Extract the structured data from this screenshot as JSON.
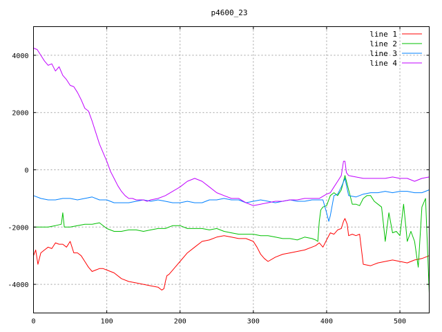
{
  "chart_data": {
    "type": "line",
    "title": "p4600_23",
    "xlabel": "",
    "ylabel": "",
    "xlim": [
      0,
      540
    ],
    "ylim": [
      -5000,
      5000
    ],
    "x_ticks": [
      0,
      100,
      200,
      300,
      400,
      500
    ],
    "y_ticks": [
      -4000,
      -2000,
      0,
      2000,
      4000
    ],
    "grid": true,
    "legend_position": "top-right",
    "series": [
      {
        "name": "line 1",
        "color": "#ff0000",
        "x": [
          0,
          3,
          6,
          10,
          15,
          20,
          25,
          30,
          35,
          40,
          45,
          50,
          55,
          60,
          65,
          70,
          75,
          80,
          85,
          90,
          95,
          100,
          110,
          120,
          130,
          140,
          150,
          160,
          170,
          175,
          178,
          180,
          182,
          185,
          190,
          200,
          210,
          220,
          230,
          240,
          250,
          260,
          270,
          280,
          290,
          300,
          305,
          310,
          315,
          320,
          330,
          340,
          350,
          360,
          370,
          380,
          385,
          390,
          395,
          400,
          405,
          410,
          415,
          420,
          423,
          425,
          428,
          430,
          435,
          440,
          445,
          450,
          460,
          470,
          480,
          490,
          500,
          510,
          520,
          530,
          540
        ],
        "values": [
          -3000,
          -2800,
          -3300,
          -2900,
          -2800,
          -2700,
          -2750,
          -2550,
          -2600,
          -2600,
          -2700,
          -2500,
          -2900,
          -2900,
          -3000,
          -3200,
          -3400,
          -3550,
          -3500,
          -3450,
          -3450,
          -3500,
          -3600,
          -3800,
          -3900,
          -3950,
          -4000,
          -4050,
          -4100,
          -4200,
          -4150,
          -3900,
          -3700,
          -3650,
          -3500,
          -3200,
          -2900,
          -2700,
          -2500,
          -2450,
          -2350,
          -2300,
          -2350,
          -2400,
          -2400,
          -2500,
          -2700,
          -2950,
          -3100,
          -3200,
          -3050,
          -2950,
          -2900,
          -2850,
          -2800,
          -2700,
          -2650,
          -2550,
          -2700,
          -2450,
          -2200,
          -2250,
          -2100,
          -2050,
          -1800,
          -1700,
          -1900,
          -2300,
          -2250,
          -2300,
          -2250,
          -3300,
          -3350,
          -3250,
          -3200,
          -3150,
          -3200,
          -3250,
          -3150,
          -3100,
          -3000
        ]
      },
      {
        "name": "line 2",
        "color": "#00c000",
        "x": [
          0,
          10,
          20,
          30,
          38,
          40,
          42,
          45,
          50,
          60,
          70,
          80,
          90,
          100,
          110,
          120,
          130,
          140,
          150,
          160,
          170,
          180,
          190,
          200,
          210,
          220,
          230,
          240,
          250,
          260,
          270,
          280,
          290,
          300,
          310,
          320,
          330,
          340,
          350,
          360,
          370,
          380,
          385,
          388,
          390,
          392,
          395,
          400,
          405,
          410,
          415,
          420,
          425,
          430,
          435,
          440,
          445,
          450,
          455,
          460,
          465,
          470,
          475,
          478,
          480,
          485,
          490,
          495,
          500,
          505,
          510,
          515,
          520,
          525,
          530,
          535,
          540
        ],
        "values": [
          -2000,
          -2000,
          -2000,
          -1950,
          -1900,
          -1500,
          -2000,
          -2000,
          -2000,
          -1950,
          -1900,
          -1900,
          -1850,
          -2050,
          -2150,
          -2150,
          -2100,
          -2100,
          -2150,
          -2100,
          -2050,
          -2050,
          -1950,
          -1950,
          -2050,
          -2050,
          -2050,
          -2100,
          -2050,
          -2150,
          -2200,
          -2250,
          -2250,
          -2250,
          -2300,
          -2300,
          -2350,
          -2400,
          -2400,
          -2450,
          -2350,
          -2400,
          -2450,
          -2500,
          -1800,
          -1400,
          -1300,
          -1250,
          -900,
          -800,
          -900,
          -700,
          -200,
          -700,
          -1200,
          -1200,
          -1250,
          -1000,
          -900,
          -900,
          -1100,
          -1200,
          -1300,
          -2000,
          -2500,
          -1500,
          -2200,
          -2150,
          -2300,
          -1200,
          -2500,
          -2150,
          -2500,
          -3400,
          -1300,
          -1000,
          -4300
        ]
      },
      {
        "name": "line 3",
        "color": "#0080ff",
        "x": [
          0,
          10,
          20,
          30,
          40,
          50,
          60,
          70,
          80,
          90,
          100,
          110,
          120,
          130,
          140,
          150,
          160,
          170,
          180,
          190,
          200,
          210,
          220,
          230,
          240,
          250,
          260,
          270,
          280,
          290,
          300,
          310,
          320,
          330,
          340,
          350,
          360,
          370,
          380,
          390,
          395,
          400,
          403,
          405,
          410,
          415,
          420,
          425,
          430,
          440,
          450,
          460,
          470,
          480,
          490,
          500,
          510,
          520,
          530,
          540
        ],
        "values": [
          -900,
          -1000,
          -1050,
          -1050,
          -1000,
          -1000,
          -1050,
          -1000,
          -950,
          -1050,
          -1050,
          -1150,
          -1150,
          -1150,
          -1100,
          -1050,
          -1100,
          -1050,
          -1100,
          -1150,
          -1150,
          -1100,
          -1150,
          -1150,
          -1050,
          -1050,
          -1000,
          -1050,
          -1050,
          -1150,
          -1100,
          -1050,
          -1100,
          -1150,
          -1100,
          -1050,
          -1100,
          -1100,
          -1050,
          -1050,
          -1050,
          -1500,
          -1800,
          -1600,
          -900,
          -850,
          -600,
          -300,
          -900,
          -950,
          -850,
          -800,
          -800,
          -750,
          -800,
          -750,
          -750,
          -800,
          -800,
          -700
        ]
      },
      {
        "name": "line 4",
        "color": "#c000ff",
        "x": [
          0,
          5,
          10,
          15,
          20,
          25,
          30,
          35,
          40,
          45,
          50,
          55,
          60,
          65,
          70,
          75,
          80,
          85,
          90,
          95,
          100,
          105,
          110,
          115,
          120,
          125,
          130,
          135,
          140,
          145,
          150,
          155,
          160,
          170,
          180,
          190,
          200,
          210,
          215,
          220,
          225,
          230,
          240,
          250,
          260,
          270,
          280,
          290,
          300,
          310,
          320,
          330,
          340,
          350,
          360,
          370,
          380,
          390,
          400,
          405,
          410,
          415,
          420,
          423,
          425,
          427,
          430,
          440,
          450,
          460,
          470,
          480,
          490,
          500,
          510,
          520,
          530,
          540
        ],
        "values": [
          4250,
          4200,
          4000,
          3800,
          3650,
          3700,
          3450,
          3600,
          3300,
          3150,
          2950,
          2900,
          2700,
          2450,
          2150,
          2050,
          1700,
          1300,
          900,
          600,
          300,
          -50,
          -300,
          -550,
          -750,
          -900,
          -1000,
          -1000,
          -1050,
          -1050,
          -1050,
          -1100,
          -1050,
          -1000,
          -900,
          -750,
          -600,
          -400,
          -350,
          -300,
          -350,
          -400,
          -600,
          -800,
          -900,
          -1000,
          -1000,
          -1150,
          -1250,
          -1200,
          -1150,
          -1100,
          -1100,
          -1050,
          -1050,
          -1000,
          -1000,
          -1000,
          -850,
          -800,
          -600,
          -400,
          -200,
          300,
          300,
          -100,
          -200,
          -250,
          -300,
          -300,
          -300,
          -300,
          -250,
          -300,
          -300,
          -400,
          -300,
          -250
        ]
      }
    ]
  }
}
